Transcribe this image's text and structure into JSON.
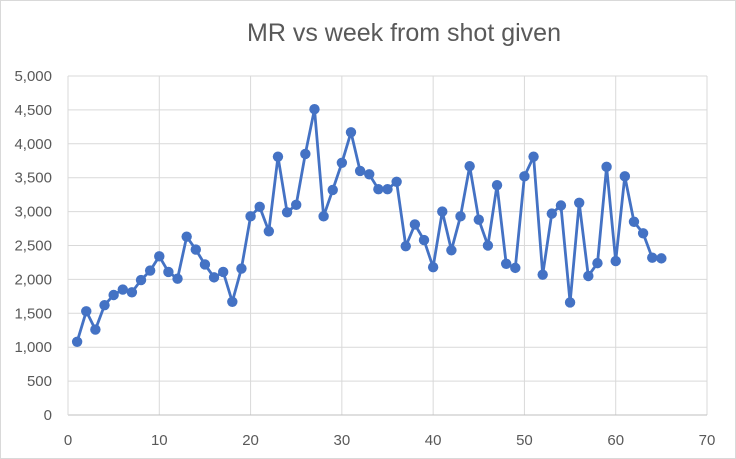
{
  "chart_data": {
    "type": "line",
    "title": "MR vs week from shot given",
    "xlabel": "",
    "ylabel": "",
    "xlim": [
      0,
      70
    ],
    "ylim": [
      0,
      5000
    ],
    "x_ticks": [
      0,
      10,
      20,
      30,
      40,
      50,
      60,
      70
    ],
    "y_ticks": [
      0,
      500,
      1000,
      1500,
      2000,
      2500,
      3000,
      3500,
      4000,
      4500,
      5000
    ],
    "x_tick_labels": [
      "0",
      "10",
      "20",
      "30",
      "40",
      "50",
      "60",
      "70"
    ],
    "y_tick_labels": [
      "0",
      "500",
      "1,000",
      "1,500",
      "2,000",
      "2,500",
      "3,000",
      "3,500",
      "4,000",
      "4,500",
      "5,000"
    ],
    "grid": "major vertical and horizontal",
    "legend": "none",
    "series": [
      {
        "color": "#4472c4",
        "x": [
          1,
          2,
          3,
          4,
          5,
          6,
          7,
          8,
          9,
          10,
          11,
          12,
          13,
          14,
          15,
          16,
          17,
          18,
          19,
          20,
          21,
          22,
          23,
          24,
          25,
          26,
          27,
          28,
          29,
          30,
          31,
          32,
          33,
          34,
          35,
          36,
          37,
          38,
          39,
          40,
          41,
          42,
          43,
          44,
          45,
          46,
          47,
          48,
          49,
          50,
          51,
          52,
          53,
          54,
          55,
          56,
          57,
          58,
          59,
          60,
          61,
          62,
          63,
          64,
          65
        ],
        "y": [
          1080,
          1530,
          1260,
          1620,
          1770,
          1850,
          1810,
          1990,
          2130,
          2340,
          2110,
          2010,
          2630,
          2440,
          2220,
          2030,
          2110,
          1670,
          2160,
          2930,
          3070,
          2710,
          3810,
          2990,
          3100,
          3850,
          4510,
          2930,
          3320,
          3720,
          4170,
          3600,
          3550,
          3330,
          3330,
          3440,
          2490,
          2810,
          2580,
          2180,
          3000,
          2430,
          2930,
          3670,
          2880,
          2500,
          3390,
          2230,
          2170,
          3520,
          3810,
          2070,
          2970,
          3090,
          1660,
          3130,
          2050,
          2240,
          3660,
          2270,
          3520,
          2850,
          2680,
          2320,
          2310
        ]
      }
    ]
  }
}
